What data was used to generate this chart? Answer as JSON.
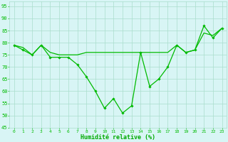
{
  "x": [
    0,
    1,
    2,
    3,
    4,
    5,
    6,
    7,
    8,
    9,
    10,
    11,
    12,
    13,
    14,
    15,
    16,
    17,
    18,
    19,
    20,
    21,
    22,
    23
  ],
  "line1": [
    79,
    77,
    75,
    79,
    74,
    74,
    74,
    71,
    66,
    60,
    53,
    57,
    51,
    54,
    76,
    62,
    65,
    70,
    79,
    76,
    77,
    87,
    82,
    86
  ],
  "line2": [
    79,
    78,
    75,
    79,
    76,
    75,
    75,
    75,
    76,
    76,
    76,
    76,
    76,
    76,
    76,
    76,
    76,
    76,
    79,
    76,
    77,
    84,
    83,
    86
  ],
  "ylim": [
    45,
    97
  ],
  "yticks": [
    45,
    50,
    55,
    60,
    65,
    70,
    75,
    80,
    85,
    90,
    95
  ],
  "xlabel": "Humidité relative (%)",
  "line_color": "#00bb00",
  "bg_color": "#d8f5f5",
  "grid_color": "#aaddcc",
  "xlabel_color": "#00aa00",
  "tick_color": "#00bb00",
  "figsize": [
    3.2,
    2.0
  ],
  "dpi": 100
}
